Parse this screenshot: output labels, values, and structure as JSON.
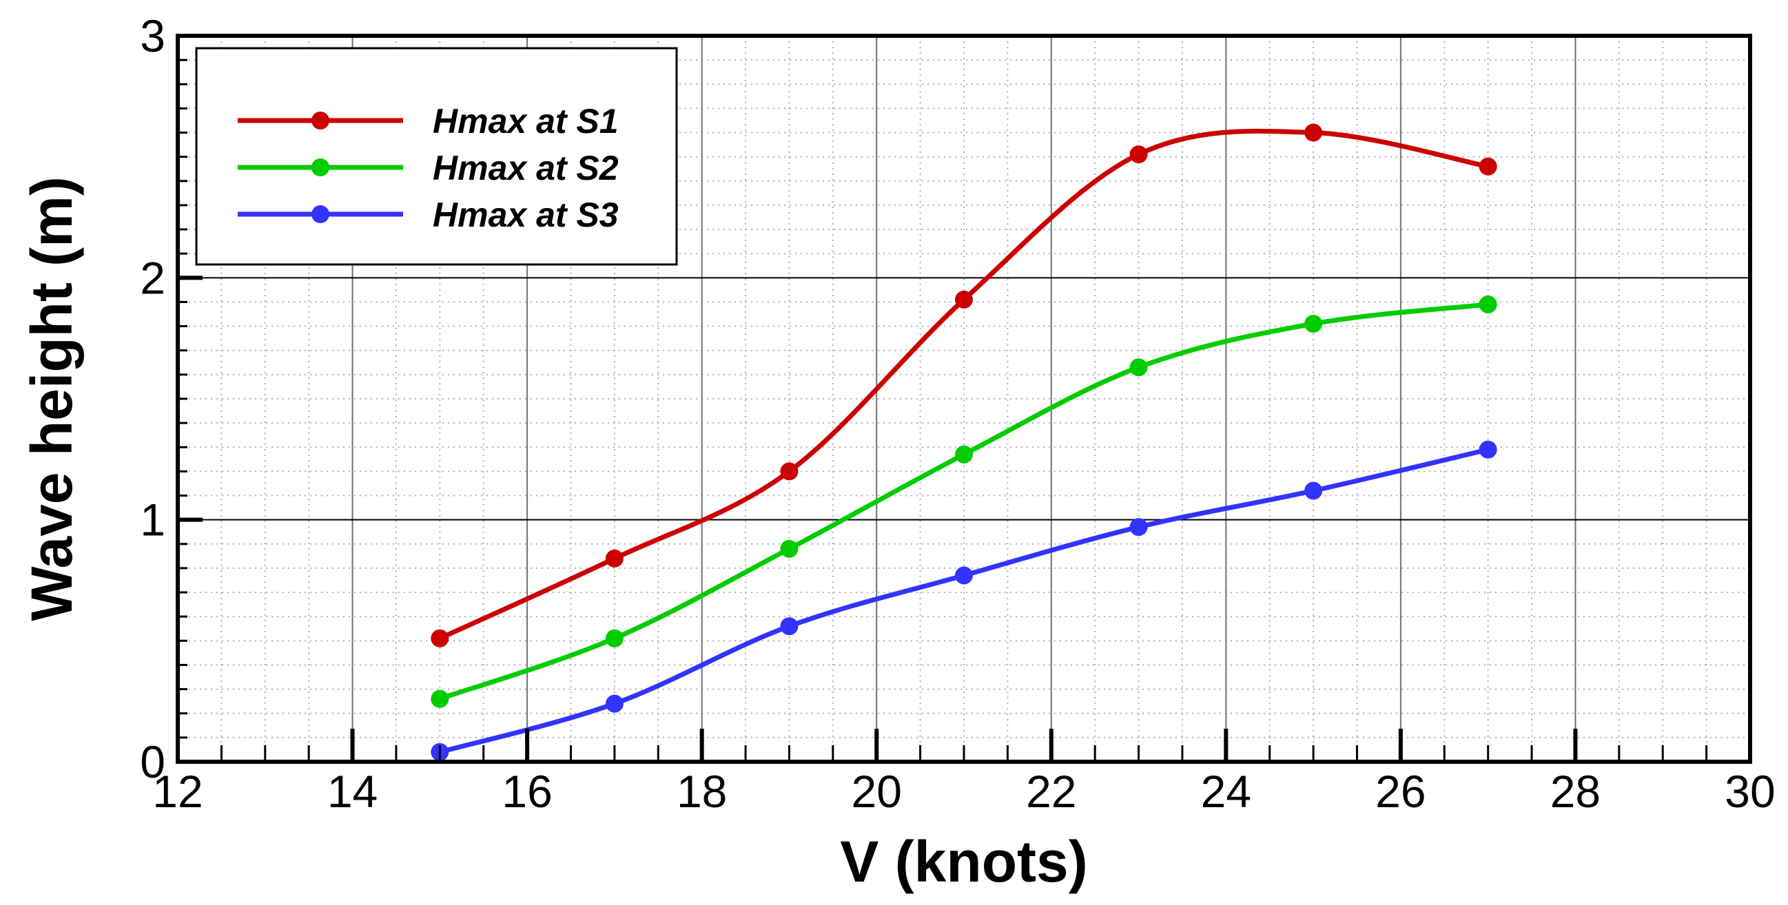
{
  "chart_data": {
    "type": "line",
    "xlabel": "V (knots)",
    "ylabel": "Wave height (m)",
    "xlim": [
      12,
      30
    ],
    "ylim": [
      0,
      3
    ],
    "x_ticks": [
      "12",
      "14",
      "16",
      "18",
      "20",
      "22",
      "24",
      "26",
      "28",
      "30"
    ],
    "y_ticks": [
      "0",
      "1",
      "2",
      "3"
    ],
    "grid": true,
    "legend_position": "top-left",
    "x": [
      15,
      17,
      19,
      21,
      23,
      25,
      27
    ],
    "series": [
      {
        "name": "Hmax at S1",
        "color": "#cc0000",
        "values": [
          0.51,
          0.84,
          1.2,
          1.91,
          2.51,
          2.6,
          2.46
        ]
      },
      {
        "name": "Hmax at S2",
        "color": "#00cc00",
        "values": [
          0.26,
          0.51,
          0.88,
          1.27,
          1.63,
          1.81,
          1.89
        ]
      },
      {
        "name": "Hmax at S3",
        "color": "#3333ff",
        "values": [
          0.04,
          0.24,
          0.56,
          0.77,
          0.97,
          1.12,
          1.29
        ]
      }
    ]
  }
}
